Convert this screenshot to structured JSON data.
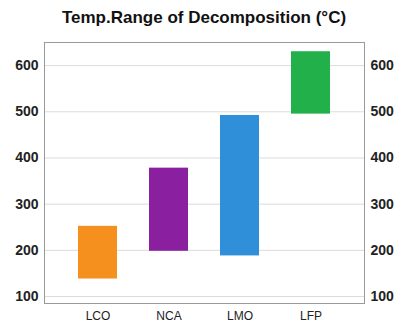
{
  "chart_data": {
    "type": "range",
    "title": "Temp.Range of Decomposition (°C)",
    "categories": [
      "LCO",
      "NCA",
      "LMO",
      "LFP"
    ],
    "values": [
      [
        138,
        252
      ],
      [
        198,
        378
      ],
      [
        188,
        492
      ],
      [
        495,
        630
      ]
    ],
    "colors": [
      "#f5901f",
      "#8a1fa0",
      "#2f8fd8",
      "#22b04b"
    ],
    "ylim": [
      85,
      650
    ],
    "yticks": [
      100,
      200,
      300,
      400,
      500,
      600
    ],
    "grid": true
  }
}
